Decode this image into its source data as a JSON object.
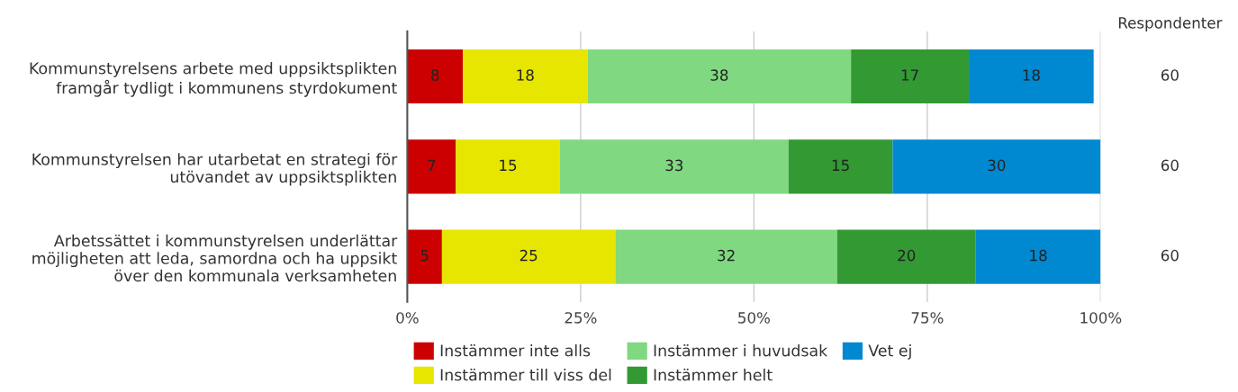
{
  "chart_data": {
    "type": "bar",
    "orientation": "horizontal",
    "stacked": true,
    "categories": [
      "Kommunstyrelsens arbete med uppsiktsplikten\nframgår tydligt i kommunens styrdokument",
      "Kommunstyrelsen har utarbetat en strategi för\nutövandet av uppsiktsplikten",
      "Arbetssättet i kommunstyrelsen underlättar\nmöjligheten att leda, samordna och ha uppsikt\növer den kommunala verksamheten"
    ],
    "series": [
      {
        "name": "Instämmer inte alls",
        "color": "#cc0000",
        "values": [
          8,
          7,
          5
        ]
      },
      {
        "name": "Instämmer till viss del",
        "color": "#e6e600",
        "values": [
          18,
          15,
          25
        ]
      },
      {
        "name": "Instämmer i huvudsak",
        "color": "#80d880",
        "values": [
          38,
          33,
          32
        ]
      },
      {
        "name": "Instämmer helt",
        "color": "#339933",
        "values": [
          17,
          15,
          20
        ]
      },
      {
        "name": "Vet ej",
        "color": "#0088d1",
        "values": [
          18,
          30,
          18
        ]
      }
    ],
    "xlim": [
      0,
      100
    ],
    "xticks": [
      {
        "value": 0,
        "label": "0%"
      },
      {
        "value": 25,
        "label": "25%"
      },
      {
        "value": 50,
        "label": "50%"
      },
      {
        "value": 75,
        "label": "75%"
      },
      {
        "value": 100,
        "label": "100%"
      }
    ],
    "grid": "x",
    "legend": "bottom",
    "data_labels": true,
    "annotations": [
      "Respondenter",
      "60",
      "60",
      "60"
    ]
  }
}
